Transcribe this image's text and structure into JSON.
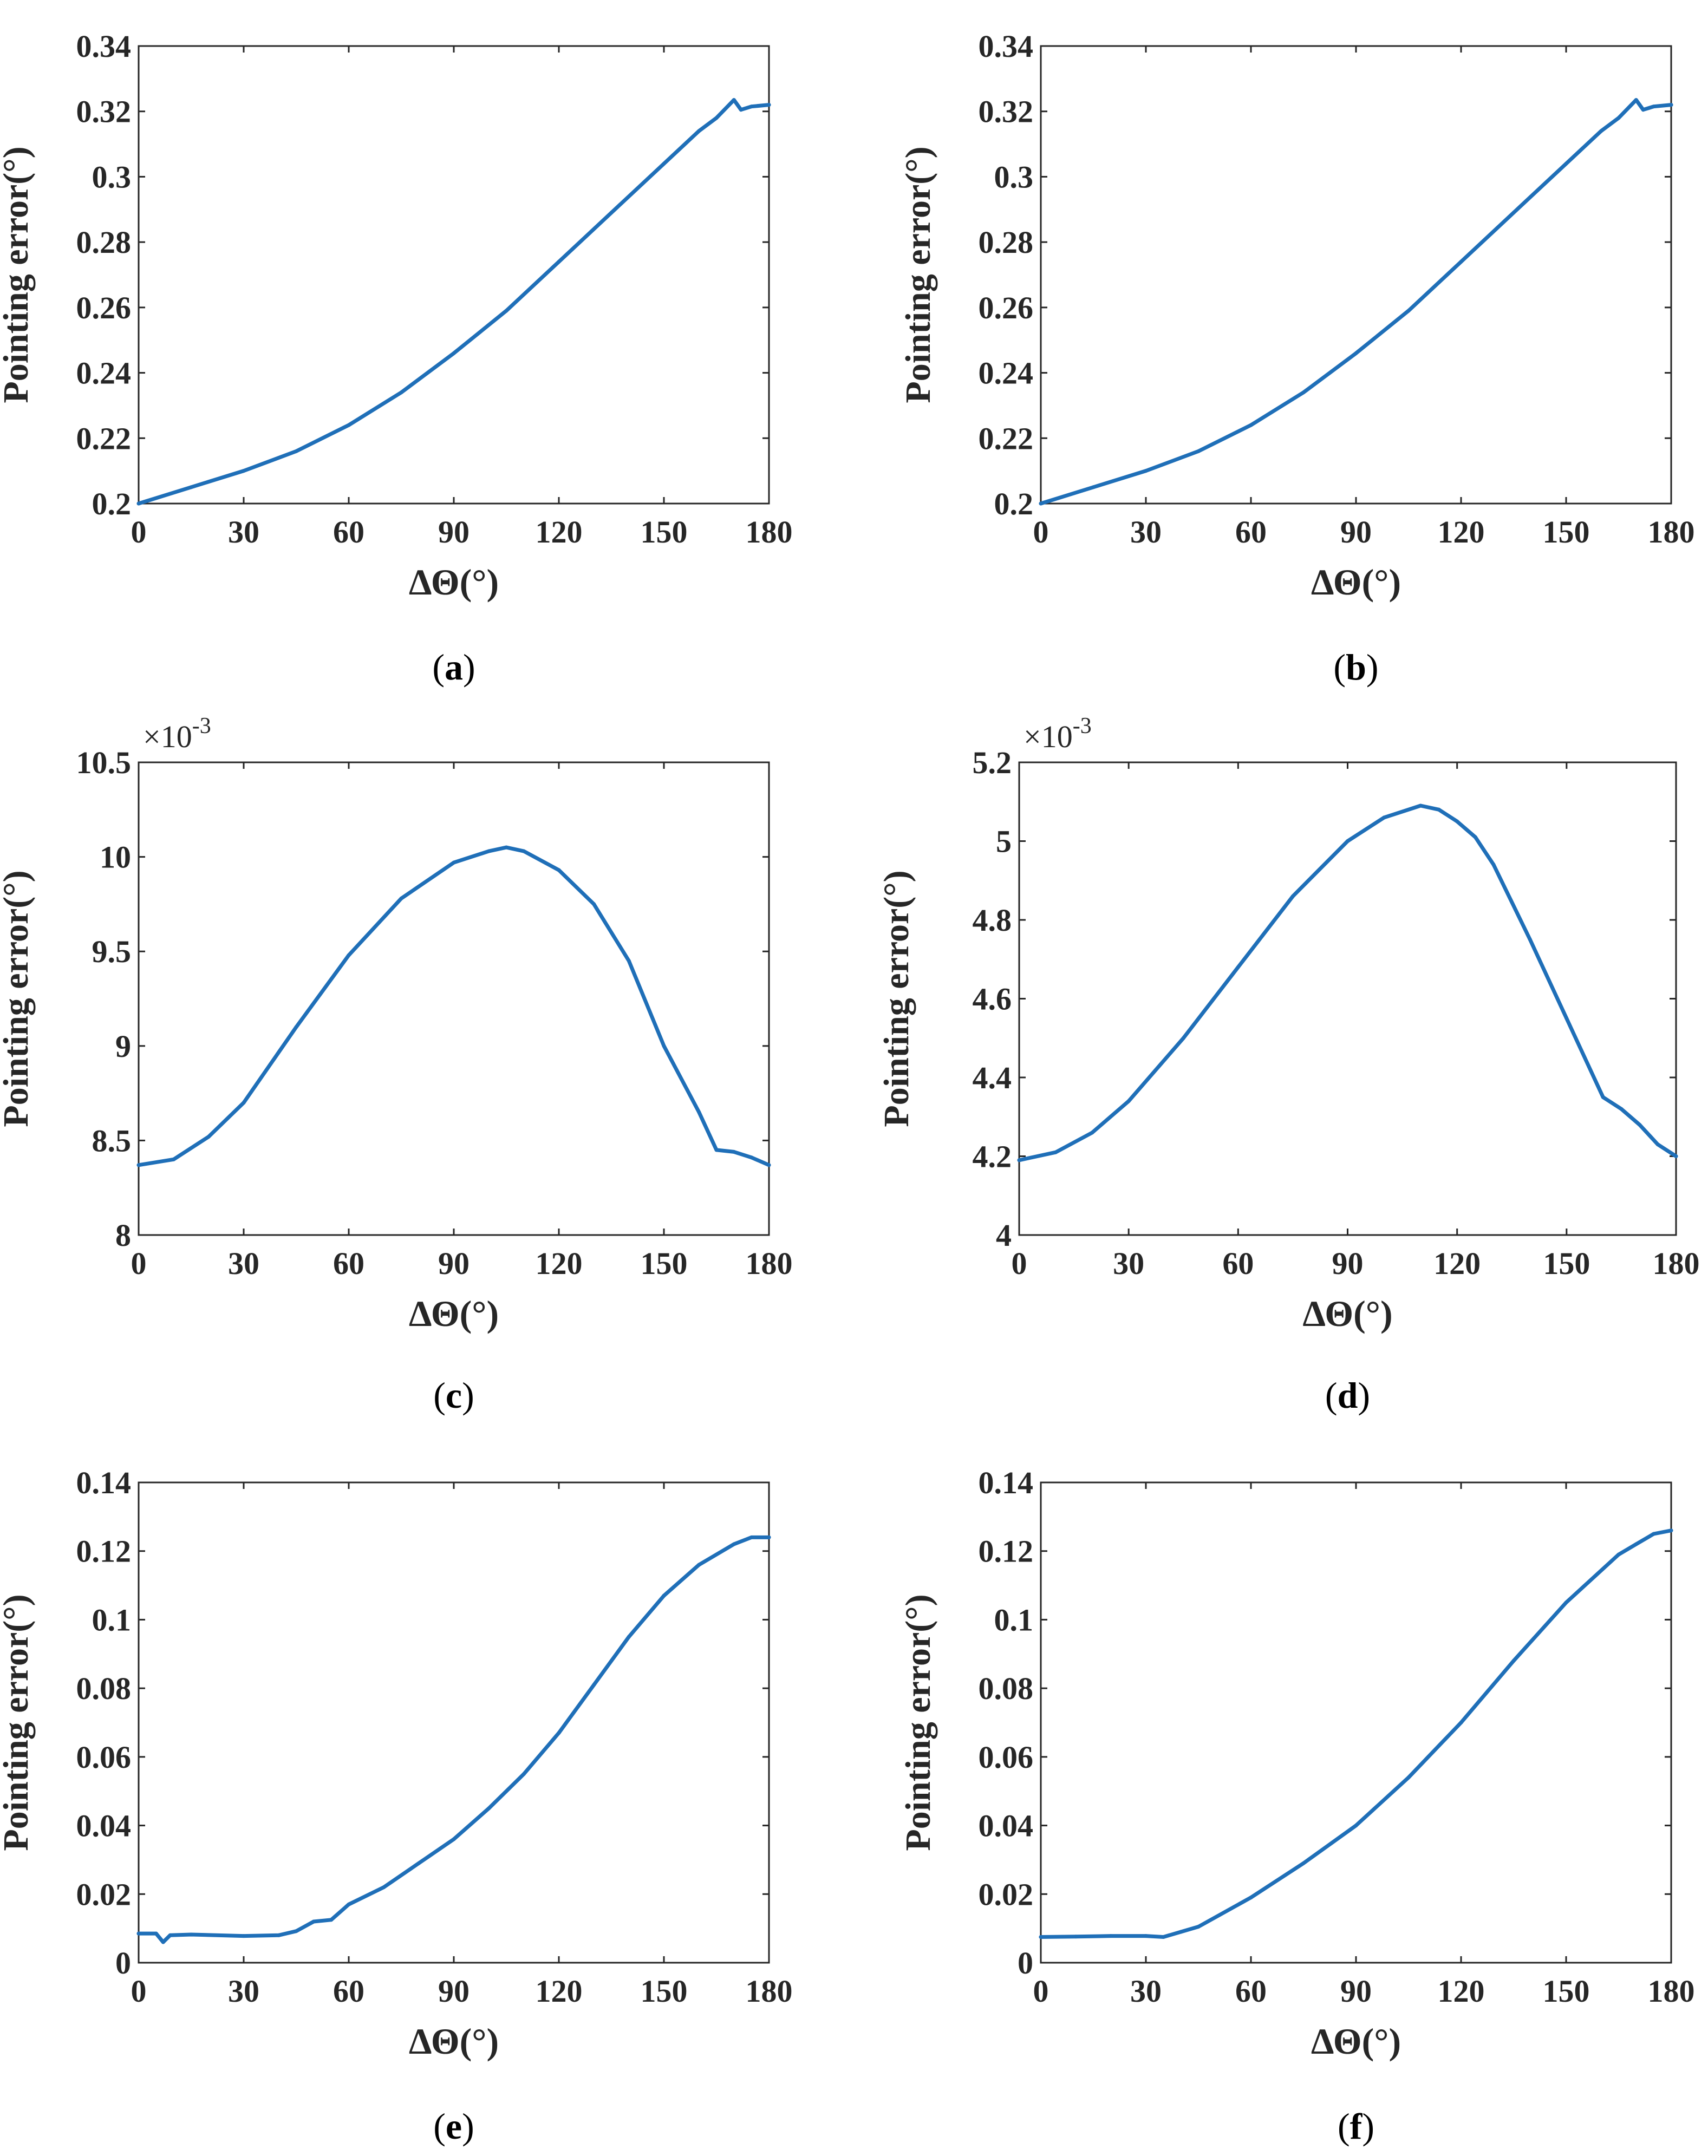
{
  "figure": {
    "panels": [
      {
        "caption_letter": "a",
        "caption_open": "(",
        "caption_close": ")"
      },
      {
        "caption_letter": "b",
        "caption_open": "(",
        "caption_close": ")"
      },
      {
        "caption_letter": "c",
        "caption_open": "(",
        "caption_close": ")"
      },
      {
        "caption_letter": "d",
        "caption_open": "(",
        "caption_close": ")"
      },
      {
        "caption_letter": "e",
        "caption_open": "(",
        "caption_close": ")"
      },
      {
        "caption_letter": "f",
        "caption_open": "(",
        "caption_close": ")"
      }
    ],
    "line_color": "#1f6fb8"
  },
  "chart_data": [
    {
      "type": "line",
      "panel": "a",
      "xlabel": "ΔΘ(°)",
      "ylabel": "Pointing error(°)",
      "xlim": [
        0,
        180
      ],
      "ylim": [
        0.2,
        0.34
      ],
      "xticks": [
        0,
        30,
        60,
        90,
        120,
        150,
        180
      ],
      "yticks": [
        0.2,
        0.22,
        0.24,
        0.26,
        0.28,
        0.3,
        0.32,
        0.34
      ],
      "ytick_labels": [
        "0.2",
        "0.22",
        "0.24",
        "0.26",
        "0.28",
        "0.3",
        "0.32",
        "0.34"
      ],
      "multiplier": "",
      "series": [
        {
          "name": "Pointing error",
          "x": [
            0,
            15,
            30,
            45,
            60,
            75,
            90,
            105,
            120,
            135,
            150,
            160,
            165,
            170,
            172,
            175,
            180
          ],
          "y": [
            0.2,
            0.205,
            0.21,
            0.216,
            0.224,
            0.234,
            0.246,
            0.259,
            0.274,
            0.289,
            0.304,
            0.314,
            0.318,
            0.3235,
            0.3205,
            0.3215,
            0.322
          ]
        }
      ]
    },
    {
      "type": "line",
      "panel": "b",
      "xlabel": "ΔΘ(°)",
      "ylabel": "Pointing error(°)",
      "xlim": [
        0,
        180
      ],
      "ylim": [
        0.2,
        0.34
      ],
      "xticks": [
        0,
        30,
        60,
        90,
        120,
        150,
        180
      ],
      "yticks": [
        0.2,
        0.22,
        0.24,
        0.26,
        0.28,
        0.3,
        0.32,
        0.34
      ],
      "ytick_labels": [
        "0.2",
        "0.22",
        "0.24",
        "0.26",
        "0.28",
        "0.3",
        "0.32",
        "0.34"
      ],
      "multiplier": "",
      "series": [
        {
          "name": "Pointing error",
          "x": [
            0,
            15,
            30,
            45,
            60,
            75,
            90,
            105,
            120,
            135,
            150,
            160,
            165,
            170,
            172,
            175,
            180
          ],
          "y": [
            0.2,
            0.205,
            0.21,
            0.216,
            0.224,
            0.234,
            0.246,
            0.259,
            0.274,
            0.289,
            0.304,
            0.314,
            0.318,
            0.3235,
            0.3205,
            0.3215,
            0.322
          ]
        }
      ]
    },
    {
      "type": "line",
      "panel": "c",
      "xlabel": "ΔΘ(°)",
      "ylabel": "Pointing error(°)",
      "xlim": [
        0,
        180
      ],
      "ylim": [
        8,
        10.5
      ],
      "xticks": [
        0,
        30,
        60,
        90,
        120,
        150,
        180
      ],
      "yticks": [
        8,
        8.5,
        9,
        9.5,
        10,
        10.5
      ],
      "ytick_labels": [
        "8",
        "8.5",
        "9",
        "9.5",
        "10",
        "10.5"
      ],
      "multiplier": "×10",
      "multiplier_exp": "-3",
      "series": [
        {
          "name": "Pointing error ×10^-3",
          "x": [
            0,
            10,
            20,
            30,
            45,
            60,
            75,
            90,
            100,
            105,
            110,
            120,
            130,
            140,
            150,
            160,
            165,
            170,
            175,
            180
          ],
          "y": [
            8.37,
            8.4,
            8.52,
            8.7,
            9.1,
            9.48,
            9.78,
            9.97,
            10.03,
            10.05,
            10.03,
            9.93,
            9.75,
            9.45,
            9.0,
            8.65,
            8.45,
            8.44,
            8.41,
            8.37
          ]
        }
      ]
    },
    {
      "type": "line",
      "panel": "d",
      "xlabel": "ΔΘ(°)",
      "ylabel": "Pointing error(°)",
      "xlim": [
        0,
        180
      ],
      "ylim": [
        4,
        5.2
      ],
      "xticks": [
        0,
        30,
        60,
        90,
        120,
        150,
        180
      ],
      "yticks": [
        4,
        4.2,
        4.4,
        4.6,
        4.8,
        5,
        5.2
      ],
      "ytick_labels": [
        "4",
        "4.2",
        "4.4",
        "4.6",
        "4.8",
        "5",
        "5.2"
      ],
      "multiplier": "×10",
      "multiplier_exp": "-3",
      "series": [
        {
          "name": "Pointing error ×10^-3",
          "x": [
            0,
            10,
            20,
            30,
            45,
            60,
            75,
            90,
            100,
            110,
            115,
            120,
            125,
            130,
            140,
            150,
            160,
            165,
            170,
            175,
            180
          ],
          "y": [
            4.19,
            4.21,
            4.26,
            4.34,
            4.5,
            4.68,
            4.86,
            5.0,
            5.06,
            5.09,
            5.08,
            5.05,
            5.01,
            4.94,
            4.75,
            4.55,
            4.35,
            4.32,
            4.28,
            4.23,
            4.2
          ]
        }
      ]
    },
    {
      "type": "line",
      "panel": "e",
      "xlabel": "ΔΘ(°)",
      "ylabel": "Pointing error(°)",
      "xlim": [
        0,
        180
      ],
      "ylim": [
        0,
        0.14
      ],
      "xticks": [
        0,
        30,
        60,
        90,
        120,
        150,
        180
      ],
      "yticks": [
        0,
        0.02,
        0.04,
        0.06,
        0.08,
        0.1,
        0.12,
        0.14
      ],
      "ytick_labels": [
        "0",
        "0.02",
        "0.04",
        "0.06",
        "0.08",
        "0.1",
        "0.12",
        "0.14"
      ],
      "multiplier": "",
      "series": [
        {
          "name": "Pointing error",
          "x": [
            0,
            5,
            7,
            9,
            15,
            30,
            40,
            45,
            50,
            55,
            60,
            70,
            80,
            90,
            100,
            110,
            120,
            130,
            140,
            150,
            160,
            170,
            175,
            180
          ],
          "y": [
            0.0085,
            0.0085,
            0.006,
            0.008,
            0.0082,
            0.0078,
            0.008,
            0.0092,
            0.012,
            0.0125,
            0.017,
            0.022,
            0.029,
            0.036,
            0.045,
            0.055,
            0.067,
            0.081,
            0.095,
            0.107,
            0.116,
            0.122,
            0.124,
            0.124
          ]
        }
      ]
    },
    {
      "type": "line",
      "panel": "f",
      "xlabel": "ΔΘ(°)",
      "ylabel": "Pointing error(°)",
      "xlim": [
        0,
        180
      ],
      "ylim": [
        0,
        0.14
      ],
      "xticks": [
        0,
        30,
        60,
        90,
        120,
        150,
        180
      ],
      "yticks": [
        0,
        0.02,
        0.04,
        0.06,
        0.08,
        0.1,
        0.12,
        0.14
      ],
      "ytick_labels": [
        "0",
        "0.02",
        "0.04",
        "0.06",
        "0.08",
        "0.1",
        "0.12",
        "0.14"
      ],
      "multiplier": "",
      "series": [
        {
          "name": "Pointing error",
          "x": [
            0,
            10,
            20,
            30,
            35,
            40,
            45,
            60,
            75,
            90,
            105,
            120,
            135,
            150,
            165,
            170,
            175,
            180
          ],
          "y": [
            0.0075,
            0.0076,
            0.0078,
            0.0078,
            0.0075,
            0.009,
            0.0105,
            0.019,
            0.029,
            0.04,
            0.054,
            0.07,
            0.088,
            0.105,
            0.119,
            0.122,
            0.125,
            0.126
          ]
        }
      ]
    }
  ]
}
